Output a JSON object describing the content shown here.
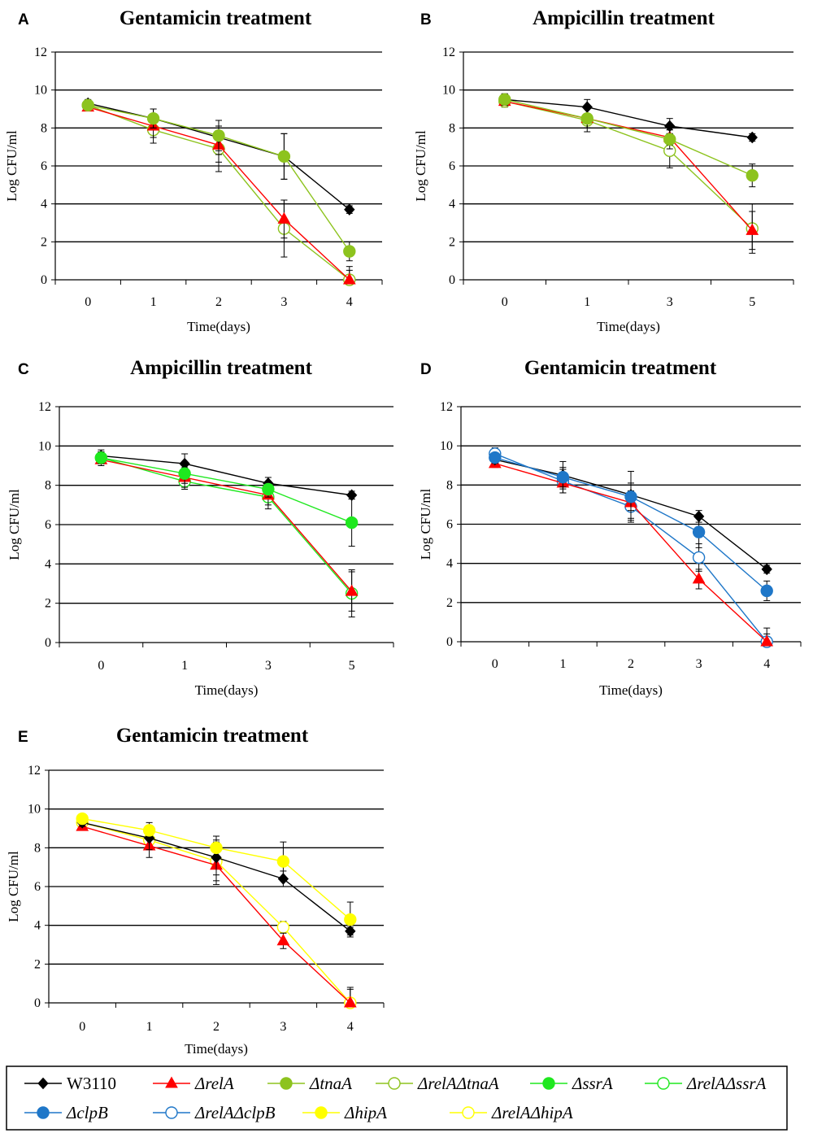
{
  "series_styles": {
    "W3110": {
      "color": "#000000",
      "marker": "diamond",
      "filled": true,
      "italic": false
    },
    "ΔrelA": {
      "color": "#ff0000",
      "marker": "triangle",
      "filled": true,
      "italic": true
    },
    "ΔtnaA": {
      "color": "#8dc31e",
      "marker": "circle",
      "filled": true,
      "italic": true
    },
    "ΔrelAΔtnaA": {
      "color": "#8dc31e",
      "marker": "circle",
      "filled": false,
      "italic": true
    },
    "ΔssrA": {
      "color": "#1fe81f",
      "marker": "circle",
      "filled": true,
      "italic": true
    },
    "ΔrelAΔssrA": {
      "color": "#1fe81f",
      "marker": "circle",
      "filled": false,
      "italic": true
    },
    "ΔclpB": {
      "color": "#1f77c8",
      "marker": "circle",
      "filled": true,
      "italic": true
    },
    "ΔrelAΔclpB": {
      "color": "#1f77c8",
      "marker": "circle",
      "filled": false,
      "italic": true
    },
    "ΔhipA": {
      "color": "#ffff00",
      "marker": "circle",
      "filled": true,
      "italic": true
    },
    "ΔrelAΔhipA": {
      "color": "#ffff00",
      "marker": "circle",
      "filled": false,
      "italic": true
    }
  },
  "legend": {
    "entries": [
      "W3110",
      "ΔrelA",
      "ΔtnaA",
      "ΔrelAΔtnaA",
      "ΔssrA",
      "ΔrelAΔssrA",
      "ΔclpB",
      "ΔrelAΔclpB",
      "ΔhipA",
      "ΔrelAΔhipA"
    ]
  },
  "chart_data": [
    {
      "panel": "A",
      "type": "line",
      "title": "Gentamicin treatment",
      "xlabel": "Time(days)",
      "ylabel": "Log CFU/ml",
      "categories": [
        "0",
        "1",
        "2",
        "3",
        "4"
      ],
      "ylim": [
        0,
        12
      ],
      "yticks": [
        0,
        2,
        4,
        6,
        8,
        10,
        12
      ],
      "series": [
        {
          "name": "ΔrelAΔtnaA",
          "values": [
            9.2,
            7.9,
            6.9,
            2.7,
            0.0
          ],
          "errors": [
            0.2,
            0.7,
            1.2,
            1.5,
            0.7
          ]
        },
        {
          "name": "ΔrelA",
          "values": [
            9.1,
            8.1,
            7.1,
            3.2,
            0.0
          ],
          "errors": [
            0.2,
            0.6,
            0.9,
            1.0,
            0.5
          ]
        },
        {
          "name": "W3110",
          "values": [
            9.3,
            8.5,
            7.5,
            6.5,
            3.7
          ],
          "errors": [
            0.2,
            0.5,
            0.9,
            1.2,
            0.2
          ]
        },
        {
          "name": "ΔtnaA",
          "values": [
            9.2,
            8.5,
            7.6,
            6.5,
            1.5
          ],
          "errors": [
            0.2,
            0.5,
            0.8,
            1.2,
            0.5
          ]
        }
      ]
    },
    {
      "panel": "B",
      "type": "line",
      "title": "Ampicillin treatment",
      "xlabel": "Time(days)",
      "ylabel": "Log CFU/ml",
      "categories": [
        "0",
        "1",
        "3",
        "5"
      ],
      "ylim": [
        0,
        12
      ],
      "yticks": [
        0,
        2,
        4,
        6,
        8,
        10,
        12
      ],
      "series": [
        {
          "name": "ΔrelAΔtnaA",
          "values": [
            9.4,
            8.4,
            6.8,
            2.7
          ],
          "errors": [
            0.3,
            0.6,
            0.9,
            1.3
          ]
        },
        {
          "name": "ΔrelA",
          "values": [
            9.4,
            8.5,
            7.5,
            2.6
          ],
          "errors": [
            0.2,
            0.5,
            0.4,
            1.0
          ]
        },
        {
          "name": "W3110",
          "values": [
            9.5,
            9.1,
            8.1,
            7.5
          ],
          "errors": [
            0.3,
            0.4,
            0.4,
            0.2
          ]
        },
        {
          "name": "ΔtnaA",
          "values": [
            9.5,
            8.5,
            7.4,
            5.5
          ],
          "errors": [
            0.3,
            0.5,
            0.5,
            0.6
          ]
        }
      ]
    },
    {
      "panel": "C",
      "type": "line",
      "title": "Ampicillin treatment",
      "xlabel": "Time(days)",
      "ylabel": "Log CFU/ml",
      "categories": [
        "0",
        "1",
        "3",
        "5"
      ],
      "ylim": [
        0,
        12
      ],
      "yticks": [
        0,
        2,
        4,
        6,
        8,
        10,
        12
      ],
      "series": [
        {
          "name": "ΔrelAΔssrA",
          "values": [
            9.4,
            8.2,
            7.4,
            2.5
          ],
          "errors": [
            0.3,
            0.4,
            0.6,
            1.2
          ]
        },
        {
          "name": "ΔrelA",
          "values": [
            9.3,
            8.4,
            7.5,
            2.6
          ],
          "errors": [
            0.3,
            0.5,
            0.5,
            1.0
          ]
        },
        {
          "name": "W3110",
          "values": [
            9.5,
            9.1,
            8.1,
            7.5
          ],
          "errors": [
            0.3,
            0.5,
            0.3,
            0.2
          ]
        },
        {
          "name": "ΔssrA",
          "values": [
            9.4,
            8.6,
            7.8,
            6.1
          ],
          "errors": [
            0.3,
            0.5,
            0.4,
            1.2
          ]
        }
      ]
    },
    {
      "panel": "D",
      "type": "line",
      "title": "Gentamicin treatment",
      "xlabel": "Time(days)",
      "ylabel": "Log CFU/ml",
      "categories": [
        "0",
        "1",
        "2",
        "3",
        "4"
      ],
      "ylim": [
        0,
        12
      ],
      "yticks": [
        0,
        2,
        4,
        6,
        8,
        10,
        12
      ],
      "series": [
        {
          "name": "ΔrelAΔclpB",
          "values": [
            9.6,
            8.2,
            6.9,
            4.3,
            0.0
          ],
          "errors": [
            0.3,
            0.6,
            0.8,
            0.7,
            0.7
          ]
        },
        {
          "name": "ΔrelA",
          "values": [
            9.1,
            8.1,
            7.1,
            3.2,
            0.0
          ],
          "errors": [
            0.2,
            0.5,
            0.9,
            0.5,
            0.4
          ]
        },
        {
          "name": "W3110",
          "values": [
            9.3,
            8.5,
            7.5,
            6.4,
            3.7
          ],
          "errors": [
            0.2,
            0.7,
            1.2,
            0.3,
            0.2
          ]
        },
        {
          "name": "ΔclpB",
          "values": [
            9.4,
            8.4,
            7.4,
            5.6,
            2.6
          ],
          "errors": [
            0.2,
            0.5,
            0.7,
            0.8,
            0.5
          ]
        }
      ]
    },
    {
      "panel": "E",
      "type": "line",
      "title": "Gentamicin treatment",
      "xlabel": "Time(days)",
      "ylabel": "Log CFU/ml",
      "categories": [
        "0",
        "1",
        "2",
        "3",
        "4"
      ],
      "ylim": [
        0,
        12
      ],
      "yticks": [
        0,
        2,
        4,
        6,
        8,
        10,
        12
      ],
      "series": [
        {
          "name": "ΔrelAΔhipA",
          "values": [
            9.3,
            8.4,
            7.3,
            3.9,
            0.0
          ],
          "errors": [
            0.2,
            0.5,
            1.0,
            0.3,
            0.8
          ]
        },
        {
          "name": "ΔrelA",
          "values": [
            9.1,
            8.1,
            7.1,
            3.2,
            0.0
          ],
          "errors": [
            0.2,
            0.6,
            1.0,
            0.4,
            0.7
          ]
        },
        {
          "name": "W3110",
          "values": [
            9.3,
            8.5,
            7.5,
            6.4,
            3.7
          ],
          "errors": [
            0.2,
            0.6,
            0.9,
            0.4,
            0.2
          ]
        },
        {
          "name": "ΔhipA",
          "values": [
            9.5,
            8.9,
            8.0,
            7.3,
            4.3
          ],
          "errors": [
            0.2,
            0.4,
            0.6,
            1.0,
            0.9
          ]
        }
      ]
    }
  ]
}
